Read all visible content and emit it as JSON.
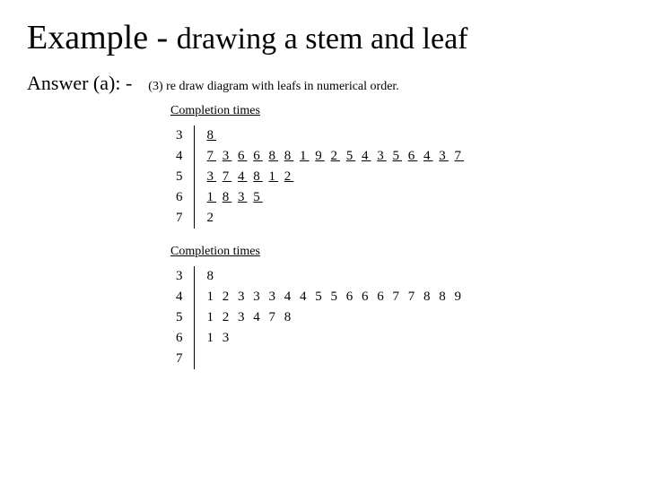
{
  "title_part1": "Example - ",
  "title_part2": "drawing a stem and leaf",
  "answer_label": "Answer (a): -",
  "step_text": "(3)  re draw diagram with leafs in numerical order.",
  "diagram1": {
    "title": "Completion times",
    "stems": [
      "3",
      "4",
      "5",
      "6",
      "7"
    ],
    "leaves": [
      "8",
      "7 3 6 6 8 8 1 9 2 5 4 3 5 6 4 3 7",
      "3 7 4 8 1 2",
      "1 8 3 5",
      "2"
    ],
    "underline_flags": [
      true,
      true,
      true,
      true,
      false
    ]
  },
  "diagram2": {
    "title": "Completion times",
    "stems": [
      "3",
      "4",
      "5",
      "6",
      "7"
    ],
    "leaves": [
      "8",
      "1 2 3 3 3 4 4 5 5 6 6 6 7 7 8 8 9",
      "1 2 3 4 7 8",
      "1 3",
      ""
    ]
  },
  "colors": {
    "text": "#000000",
    "background": "#ffffff"
  },
  "typography": {
    "title_fontsize_pt": 28,
    "subtitle_fontsize_pt": 16,
    "body_fontsize_pt": 11,
    "font_family": "Times New Roman"
  }
}
